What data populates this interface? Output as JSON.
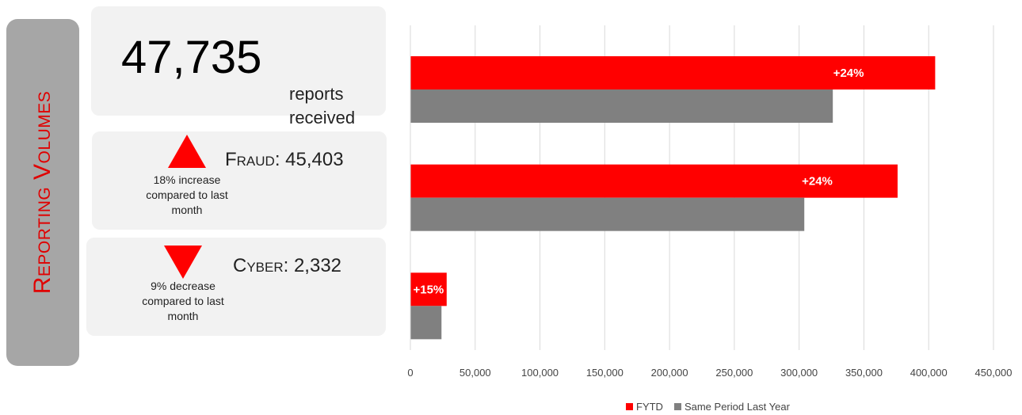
{
  "side_tab": {
    "label": "Reporting Volumes"
  },
  "summary": {
    "total": "47,735",
    "total_label": "reports received",
    "fraud": {
      "label": "Fraud: 45,403",
      "change_note": "18% increase compared to last month",
      "direction": "up"
    },
    "cyber": {
      "label": "Cyber: 2,332",
      "change_note": "9% decrease compared to last month",
      "direction": "down"
    },
    "accent_color": "#ff0000"
  },
  "chart_data": {
    "type": "bar",
    "orientation": "horizontal",
    "categories": [
      "",
      "",
      ""
    ],
    "series": [
      {
        "name": "FYTD",
        "color": "#ff0000",
        "values": [
          405000,
          376000,
          28000
        ],
        "labels": [
          "+24%",
          "+24%",
          "+15%"
        ]
      },
      {
        "name": "Same Period Last Year",
        "color": "#808080",
        "values": [
          326000,
          304000,
          24000
        ]
      }
    ],
    "xlim": [
      0,
      450000
    ],
    "xticks": [
      0,
      50000,
      100000,
      150000,
      200000,
      250000,
      300000,
      350000,
      400000,
      450000
    ],
    "xtick_labels": [
      "0",
      "50,000",
      "100,000",
      "150,000",
      "200,000",
      "250,000",
      "300,000",
      "350,000",
      "400,000",
      "450,000"
    ],
    "grid": true,
    "legend_position": "bottom"
  }
}
